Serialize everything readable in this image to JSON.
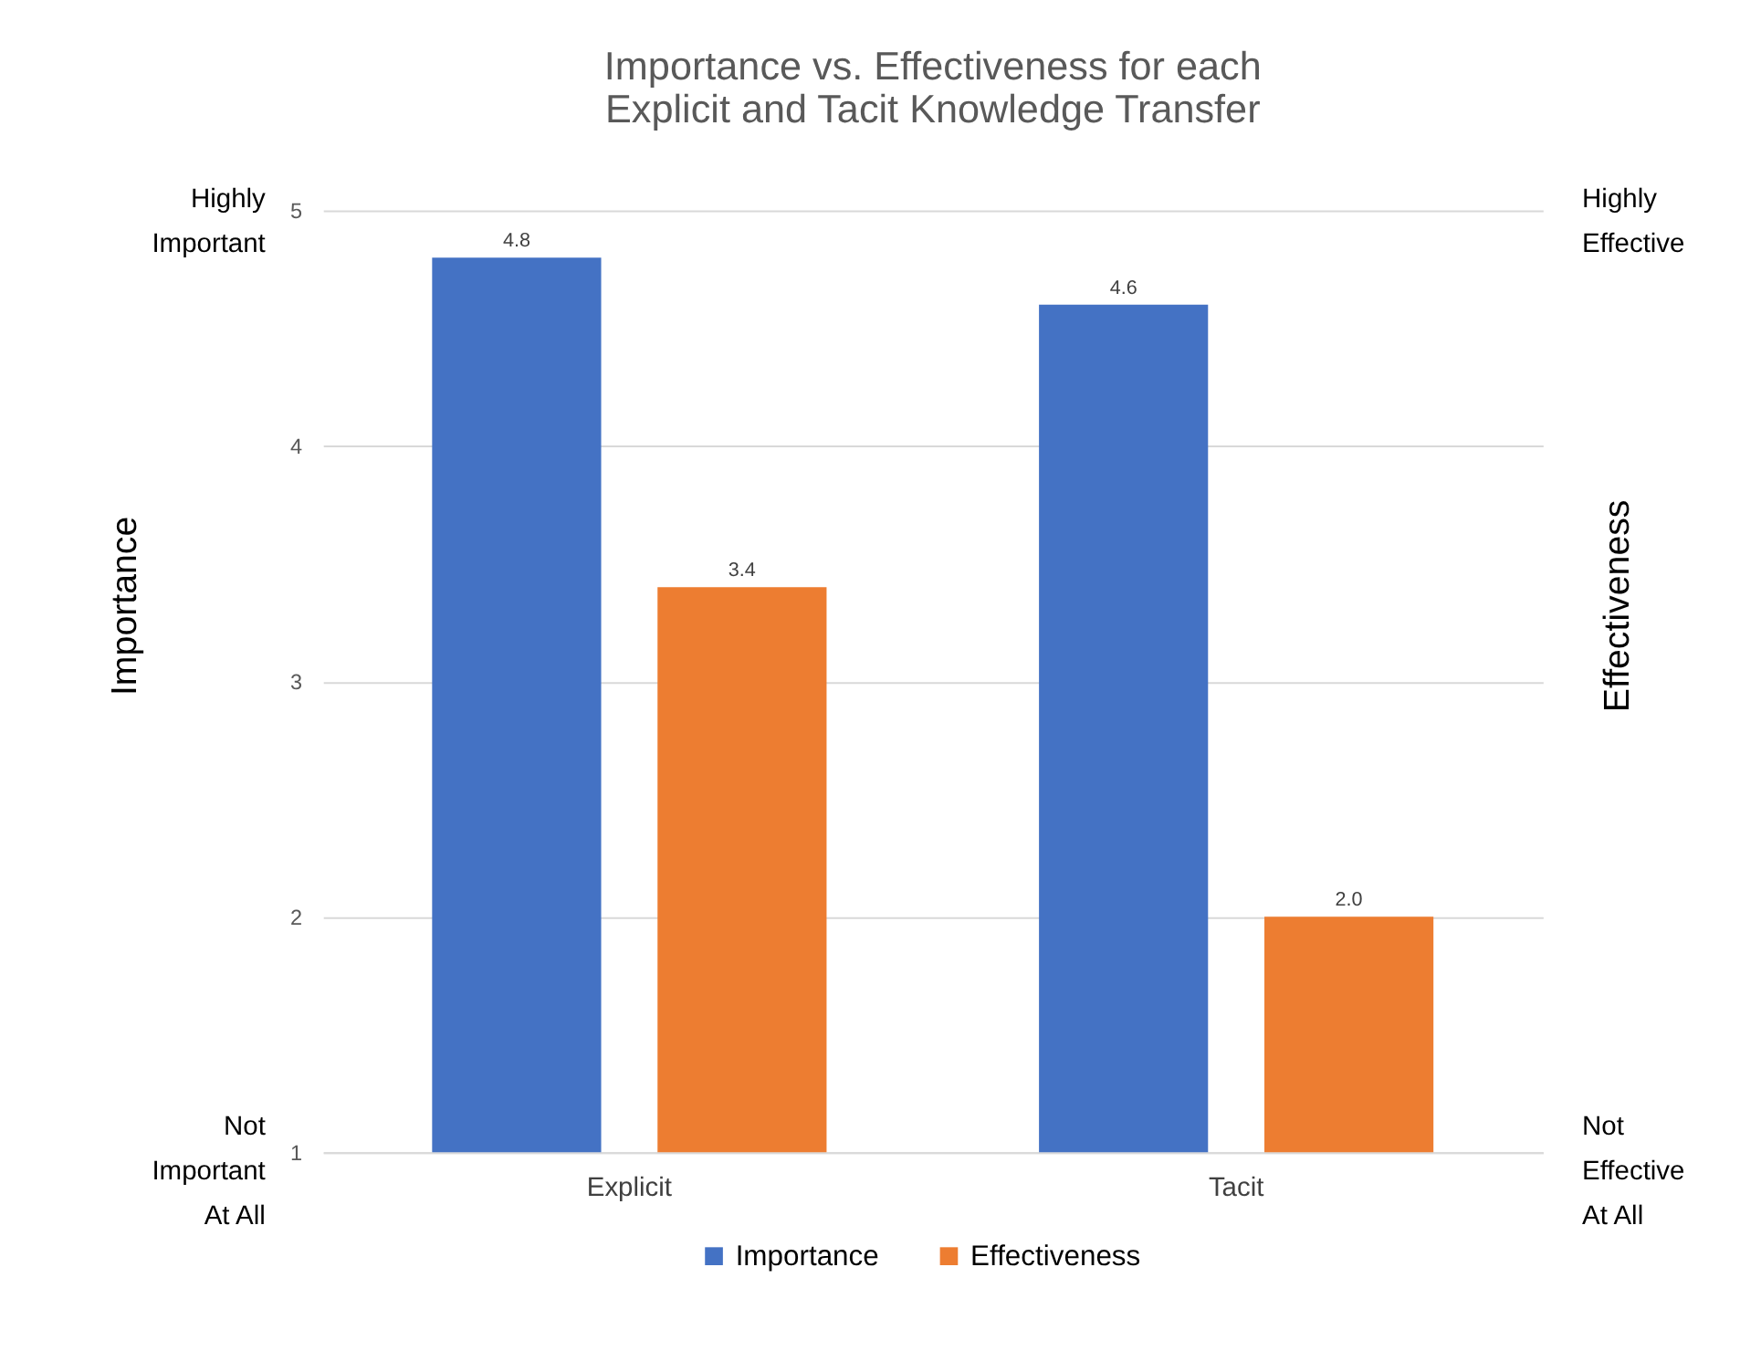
{
  "chart_data": {
    "type": "bar",
    "title": [
      "Importance vs. Effectiveness for each",
      "Explicit and Tacit Knowledge Transfer"
    ],
    "categories": [
      "Explicit",
      "Tacit"
    ],
    "series": [
      {
        "name": "Importance",
        "color": "#4472c4",
        "values": [
          4.8,
          4.6
        ],
        "value_labels": [
          "4.8",
          "4.6"
        ]
      },
      {
        "name": "Effectiveness",
        "color": "#ed7d31",
        "values": [
          3.4,
          2.0
        ],
        "value_labels": [
          "3.4",
          "2.0"
        ]
      }
    ],
    "ylim": [
      1,
      5
    ],
    "yticks": [
      1,
      2,
      3,
      4,
      5
    ],
    "ylabel": "Importance",
    "y2label": "Effectiveness",
    "annotations": [
      "Highly\nImportant",
      "Not\nImportant\nAt All",
      "Highly\nEffective",
      "Not\nEffective\nAt All"
    ],
    "grid": "y",
    "legend": "bottom"
  }
}
